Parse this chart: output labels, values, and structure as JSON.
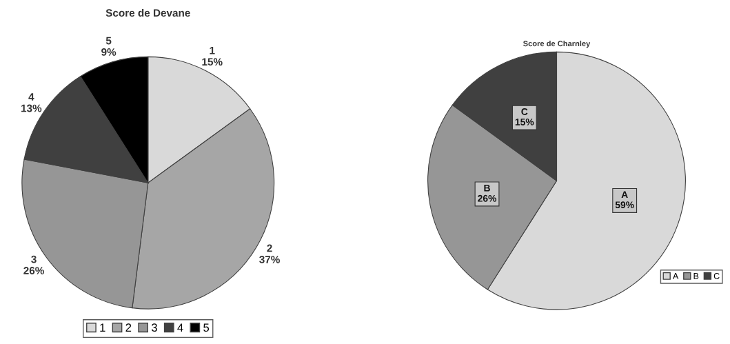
{
  "chart_data": [
    {
      "type": "pie",
      "title": "Score de Devane",
      "categories": [
        "1",
        "2",
        "3",
        "4",
        "5"
      ],
      "values": [
        15,
        37,
        26,
        13,
        9
      ],
      "value_labels": [
        "15%",
        "37%",
        "26%",
        "13%",
        "9%"
      ],
      "colors": [
        "#d9d9d9",
        "#a6a6a6",
        "#969696",
        "#404040",
        "#000000"
      ],
      "legend": "bottom"
    },
    {
      "type": "pie",
      "title": "Score de Charnley",
      "categories": [
        "A",
        "B",
        "C"
      ],
      "values": [
        59,
        26,
        15
      ],
      "value_labels": [
        "59%",
        "26%",
        "15%"
      ],
      "colors": [
        "#d9d9d9",
        "#969696",
        "#404040"
      ],
      "legend": "bottom right"
    }
  ]
}
